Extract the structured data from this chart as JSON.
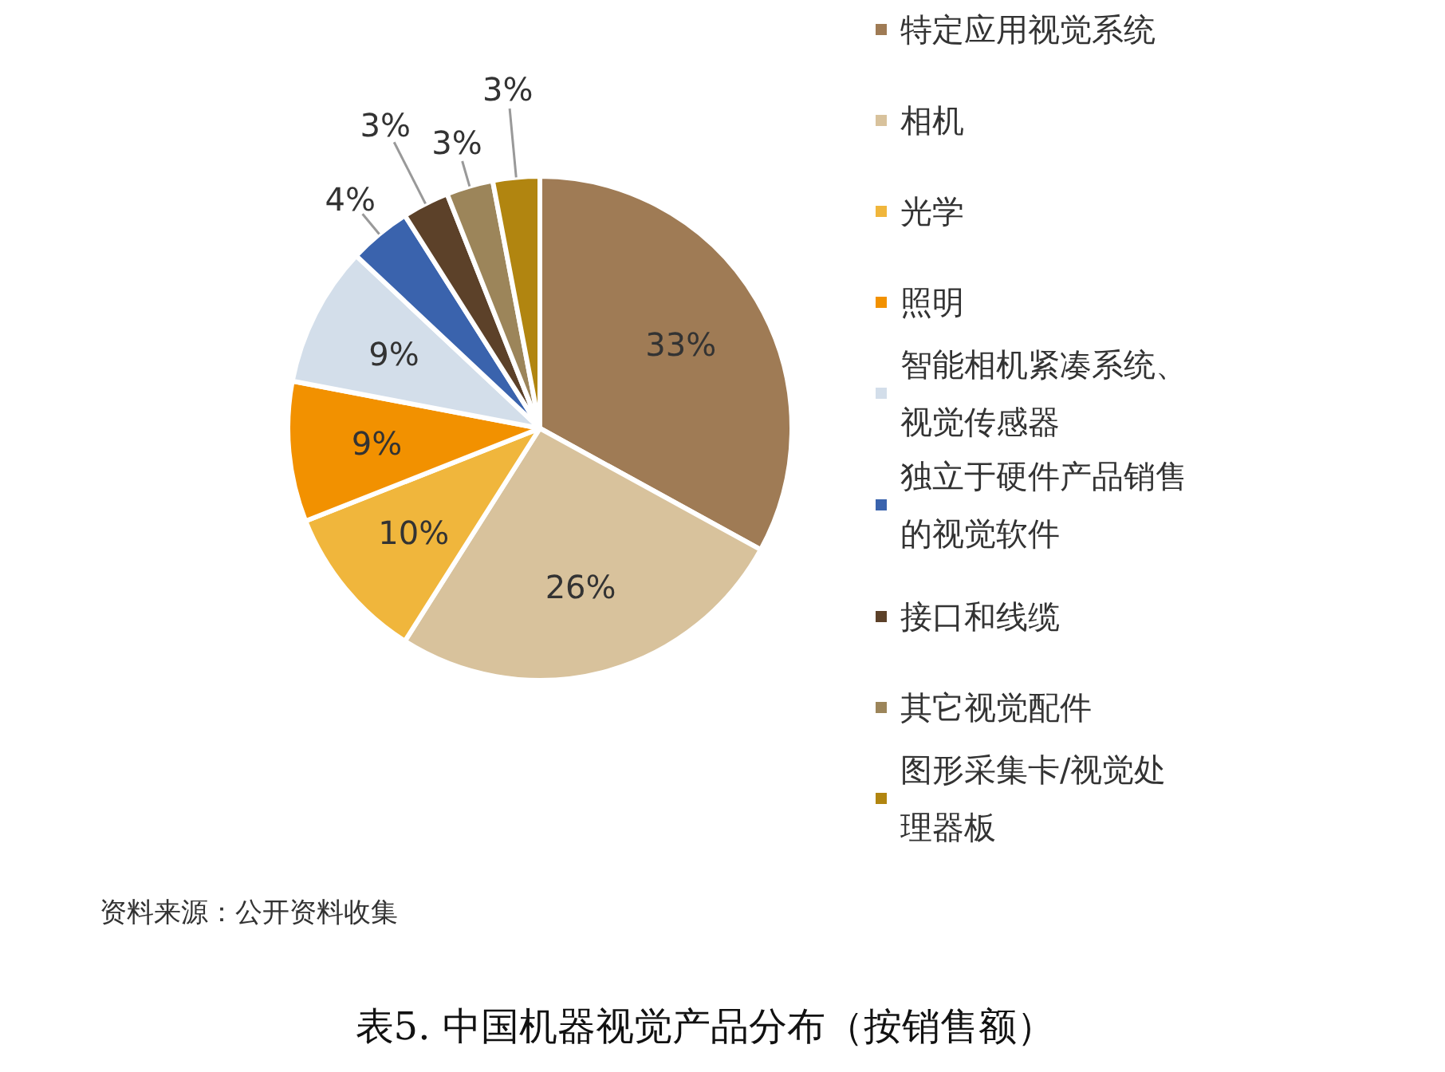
{
  "chart_data": {
    "type": "pie",
    "title": "表5.    中国机器视觉产品分布（按销售额）",
    "categories": [
      "特定应用视觉系统",
      "相机",
      "光学",
      "照明",
      "智能相机紧凑系统、视觉传感器",
      "独立于硬件产品销售的视觉软件",
      "接口和线缆",
      "其它视觉配件",
      "图形采集卡/视觉处理器板"
    ],
    "values": [
      33,
      26,
      10,
      9,
      9,
      4,
      3,
      3,
      3
    ],
    "colors": [
      "#9f7b55",
      "#d8c29c",
      "#f0b63c",
      "#f29100",
      "#d3deea",
      "#3a63ad",
      "#5c4129",
      "#9c855a",
      "#b18510"
    ],
    "value_labels": [
      "33%",
      "26%",
      "10%",
      "9%",
      "9%",
      "4%",
      "3%",
      "3%",
      "3%"
    ],
    "legend": "right",
    "annotations": [
      "资料来源：公开资料收集"
    ]
  }
}
